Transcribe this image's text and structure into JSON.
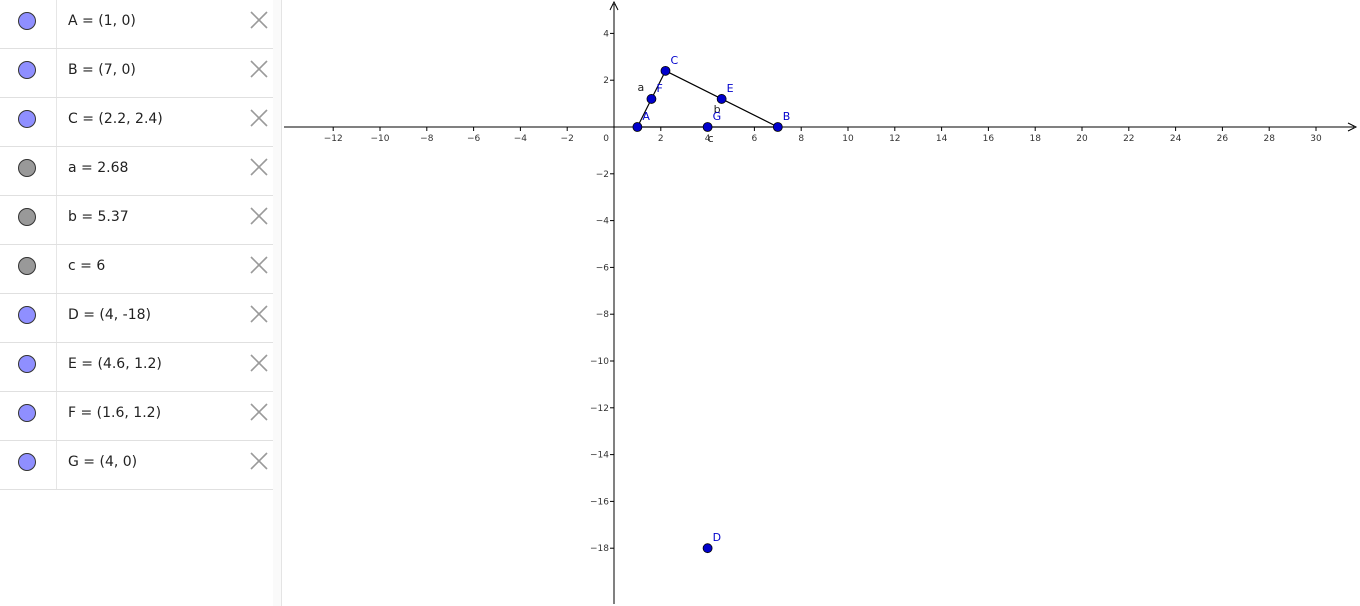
{
  "algebra": {
    "items": [
      {
        "text": "A = (1, 0)",
        "color": "#8f8fff",
        "kind": "point"
      },
      {
        "text": "B = (7, 0)",
        "color": "#8f8fff",
        "kind": "point"
      },
      {
        "text": "C = (2.2, 2.4)",
        "color": "#8f8fff",
        "kind": "point"
      },
      {
        "text": "a = 2.68",
        "color": "#999999",
        "kind": "segment"
      },
      {
        "text": "b = 5.37",
        "color": "#999999",
        "kind": "segment"
      },
      {
        "text": "c = 6",
        "color": "#999999",
        "kind": "segment"
      },
      {
        "text": "D = (4, -18)",
        "color": "#8f8fff",
        "kind": "point"
      },
      {
        "text": "E = (4.6, 1.2)",
        "color": "#8f8fff",
        "kind": "point"
      },
      {
        "text": "F = (1.6, 1.2)",
        "color": "#8f8fff",
        "kind": "point"
      },
      {
        "text": "G = (4, 0)",
        "color": "#8f8fff",
        "kind": "point"
      }
    ],
    "delete_icon": "close-icon"
  },
  "graph": {
    "x_ticks": [
      -12,
      -10,
      -8,
      -6,
      -4,
      -2,
      2,
      4,
      6,
      8,
      10,
      12,
      14,
      16,
      18,
      20,
      22,
      24,
      26,
      28,
      30
    ],
    "y_ticks": [
      4,
      2,
      -2,
      -4,
      -6,
      -8,
      -10,
      -12,
      -14,
      -16,
      -18
    ],
    "origin_label": "0",
    "point_color": "#0000cc",
    "points": [
      {
        "name": "A",
        "x": 1,
        "y": 0
      },
      {
        "name": "B",
        "x": 7,
        "y": 0
      },
      {
        "name": "C",
        "x": 2.2,
        "y": 2.4
      },
      {
        "name": "D",
        "x": 4,
        "y": -18
      },
      {
        "name": "E",
        "x": 4.6,
        "y": 1.2
      },
      {
        "name": "F",
        "x": 1.6,
        "y": 1.2
      },
      {
        "name": "G",
        "x": 4,
        "y": 0
      }
    ],
    "segments": [
      {
        "name": "a",
        "from": "A",
        "to": "C"
      },
      {
        "name": "b",
        "from": "C",
        "to": "B"
      },
      {
        "name": "c",
        "from": "A",
        "to": "B"
      }
    ]
  }
}
